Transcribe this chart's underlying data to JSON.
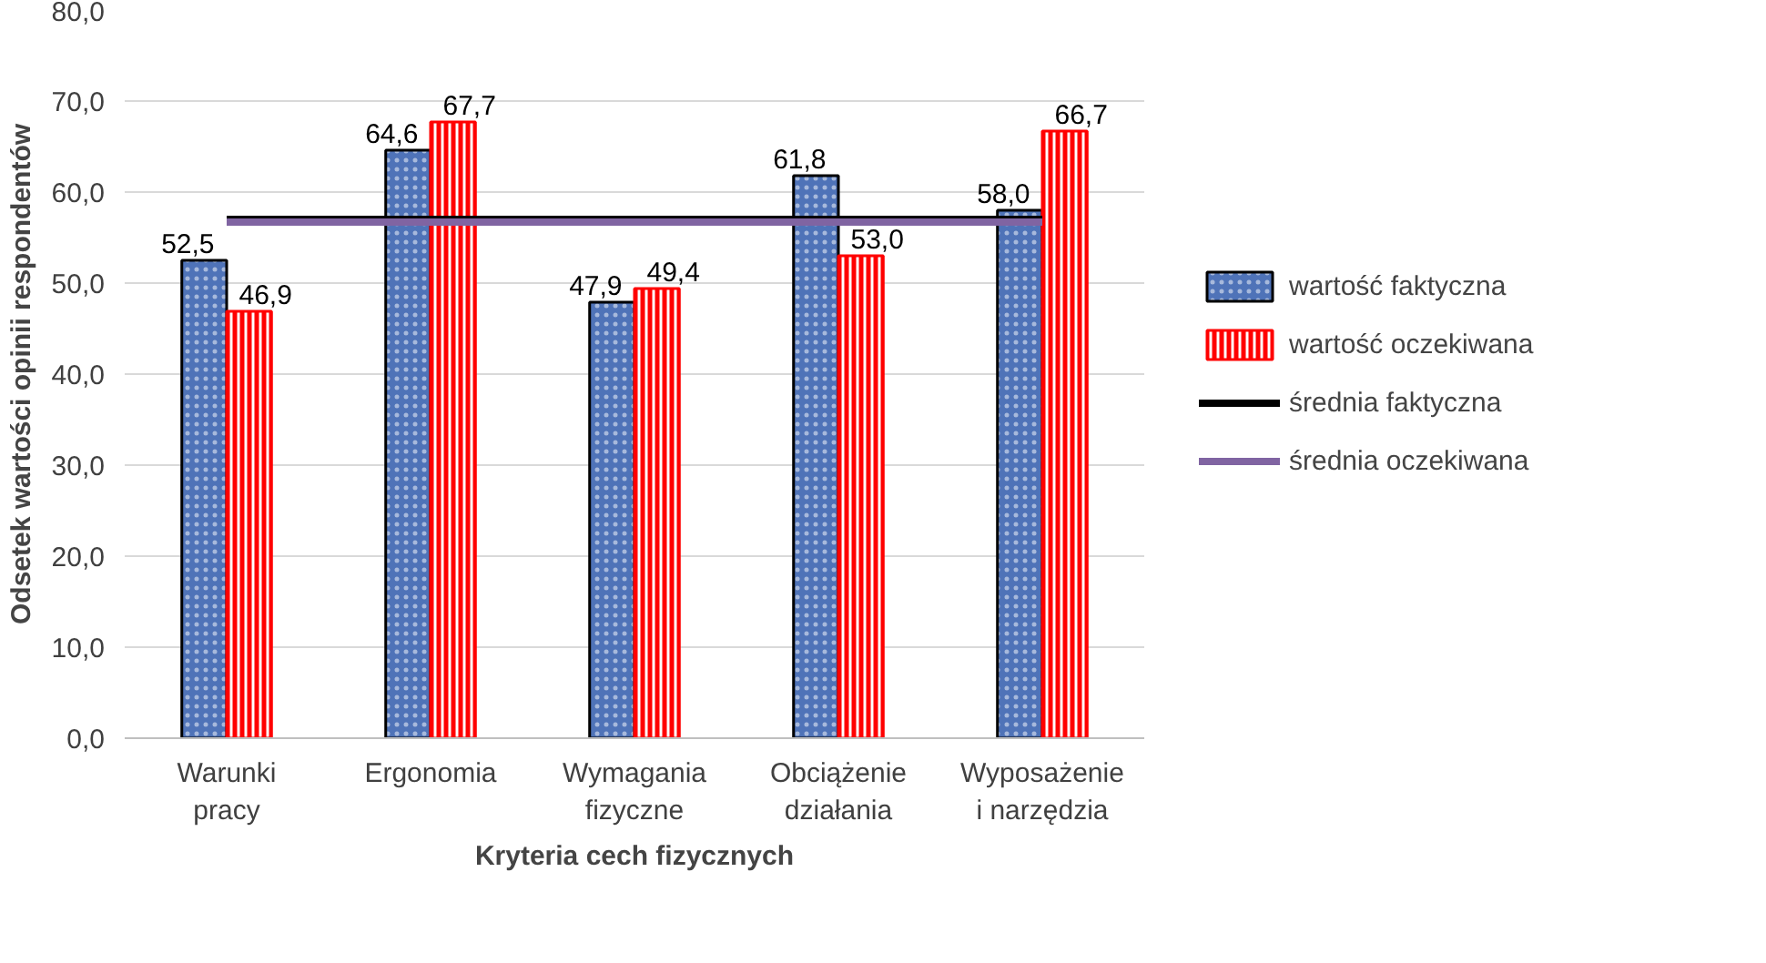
{
  "chart_data": {
    "type": "bar",
    "xlabel": "Kryteria cech fizycznych",
    "ylabel": "Odsetek wartości opinii respondentów",
    "categories": [
      "Warunki pracy",
      "Ergonomia",
      "Wymagania fizyczne",
      "Obciążenie działania",
      "Wyposażenie i narzędzia"
    ],
    "series": [
      {
        "name": "wartość faktyczna",
        "color": "#4f73b8",
        "values": [
          52.5,
          64.6,
          47.9,
          61.8,
          58.0
        ],
        "value_labels": [
          "52,5",
          "64,6",
          "47,9",
          "61,8",
          "58,0"
        ]
      },
      {
        "name": "wartość oczekiwana",
        "color": "#ff0000",
        "values": [
          46.9,
          67.7,
          49.4,
          53.0,
          66.7
        ],
        "value_labels": [
          "46,9",
          "67,7",
          "49,4",
          "53,0",
          "66,7"
        ]
      },
      {
        "name": "średnia faktyczna",
        "type": "line",
        "color": "#000000",
        "values": [
          57.0,
          57.0,
          57.0,
          57.0,
          57.0
        ]
      },
      {
        "name": "średnia oczekiwana",
        "type": "line",
        "color": "#8064a2",
        "values": [
          56.7,
          56.7,
          56.7,
          56.7,
          56.7
        ]
      }
    ],
    "ylim": [
      0,
      80
    ],
    "yticks": [
      {
        "value": 0,
        "label": "0,0"
      },
      {
        "value": 10,
        "label": "10,0"
      },
      {
        "value": 20,
        "label": "20,0"
      },
      {
        "value": 30,
        "label": "30,0"
      },
      {
        "value": 40,
        "label": "40,0"
      },
      {
        "value": 50,
        "label": "50,0"
      },
      {
        "value": 60,
        "label": "60,0"
      },
      {
        "value": 70,
        "label": "70,0"
      },
      {
        "value": 80,
        "label": "80,0"
      }
    ],
    "grid": "y",
    "legend": "right"
  }
}
